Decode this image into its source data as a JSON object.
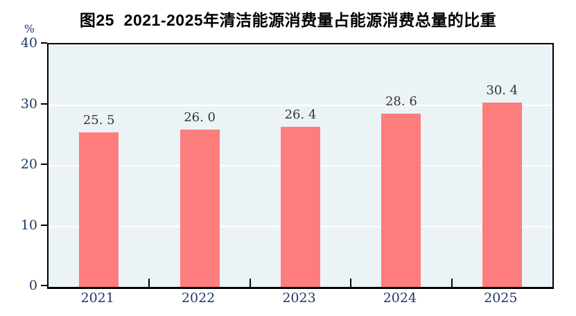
{
  "chart_data": {
    "type": "bar",
    "title": "图25  2021-2025年清洁能源消费量占能源消费总量的比重",
    "unit_label": "%",
    "categories": [
      "2021",
      "2022",
      "2023",
      "2024",
      "2025"
    ],
    "values": [
      25.5,
      26.0,
      26.4,
      28.6,
      30.4
    ],
    "value_labels": [
      "25. 5",
      "26. 0",
      "26. 4",
      "28. 6",
      "30. 4"
    ],
    "ylim": [
      0,
      40
    ],
    "yticks": [
      0,
      10,
      20,
      30,
      40
    ],
    "grid": true,
    "legend_position": "none",
    "colors": {
      "bar": "#FD7D7D",
      "plot_background": "#ECF3F7",
      "gridline": "#FFFFFF",
      "axis": "#000000",
      "axis_text": "#1F3864",
      "data_label_text": "#333333",
      "title_text": "#000000"
    }
  }
}
